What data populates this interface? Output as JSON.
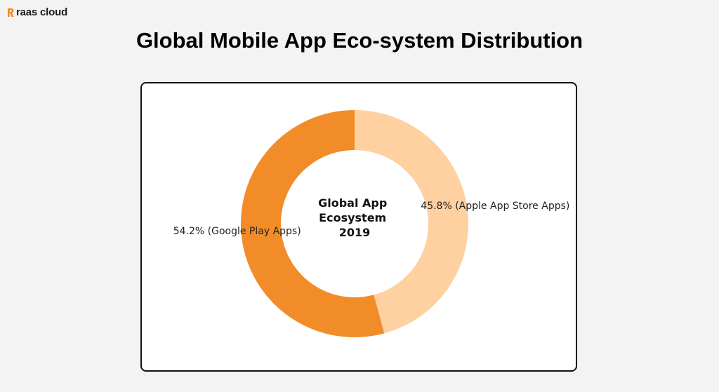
{
  "brand": {
    "name": "raas cloud",
    "accent": "#f28c28"
  },
  "page": {
    "title": "Global Mobile App Eco-system Distribution"
  },
  "chart_data": {
    "type": "pie",
    "variant": "donut",
    "center_label": [
      "Global App",
      "Ecosystem",
      "2019"
    ],
    "slices": [
      {
        "label": "Apple App Store Apps",
        "value": 45.8,
        "display": "45.8% (Apple App Store Apps)",
        "color": "#ffd1a1"
      },
      {
        "label": "Google Play Apps",
        "value": 54.2,
        "display": "54.2% (Google Play Apps)",
        "color": "#f28c28"
      }
    ],
    "start_angle": "top",
    "direction": "clockwise",
    "legend": "none"
  }
}
